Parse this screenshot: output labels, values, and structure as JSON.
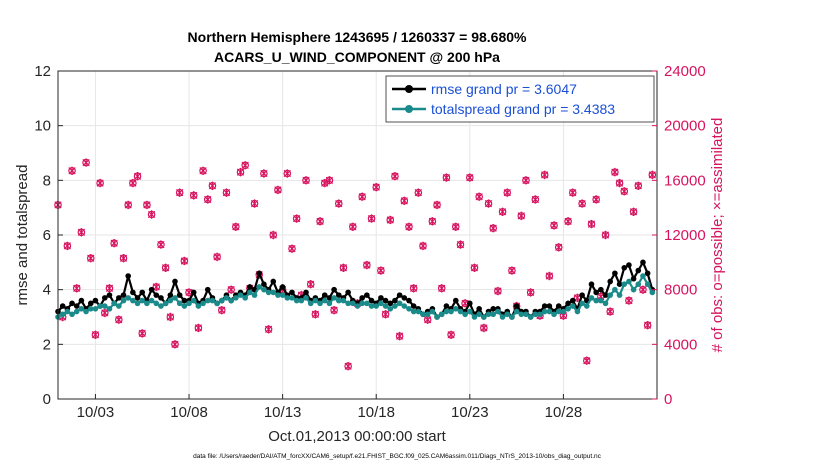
{
  "chart_data": {
    "type": "line",
    "title": "Northern Hemisphere 1243695 / 1260337 = 98.680%",
    "subtitle": "ACARS_U_WIND_COMPONENT @ 200 hPa",
    "xlabel": "Oct.01,2013 00:00:00 start",
    "ylabel": "rmse and totalspread",
    "y2label": "# of obs: o=possible; ×=assimilated",
    "footer": "data file: /Users/raeder/DAI/ATM_forcXX/CAM6_setup/f.e21.FHIST_BGC.f09_025.CAM6assim.011/Diags_NTrS_2013-10/obs_diag_output.nc",
    "xlim": [
      1,
      33
    ],
    "ylim": [
      0,
      12
    ],
    "y2lim": [
      0,
      24000
    ],
    "yticks": [
      0,
      2,
      4,
      6,
      8,
      10,
      12
    ],
    "y2ticks": [
      0,
      4000,
      8000,
      12000,
      16000,
      20000,
      24000
    ],
    "xticks": [
      3,
      8,
      13,
      18,
      23,
      28
    ],
    "xticklabels": [
      "10/03",
      "10/08",
      "10/13",
      "10/18",
      "10/23",
      "10/28"
    ],
    "grid": true,
    "legend_position": "top-right",
    "x": [
      1.0,
      1.25,
      1.5,
      1.75,
      2.0,
      2.25,
      2.5,
      2.75,
      3.0,
      3.25,
      3.5,
      3.75,
      4.0,
      4.25,
      4.5,
      4.75,
      5.0,
      5.25,
      5.5,
      5.75,
      6.0,
      6.25,
      6.5,
      6.75,
      7.0,
      7.25,
      7.5,
      7.75,
      8.0,
      8.25,
      8.5,
      8.75,
      9.0,
      9.25,
      9.5,
      9.75,
      10.0,
      10.25,
      10.5,
      10.75,
      11.0,
      11.25,
      11.5,
      11.75,
      12.0,
      12.25,
      12.5,
      12.75,
      13.0,
      13.25,
      13.5,
      13.75,
      14.0,
      14.25,
      14.5,
      14.75,
      15.0,
      15.25,
      15.5,
      15.75,
      16.0,
      16.25,
      16.5,
      16.75,
      17.0,
      17.25,
      17.5,
      17.75,
      18.0,
      18.25,
      18.5,
      18.75,
      19.0,
      19.25,
      19.5,
      19.75,
      20.0,
      20.25,
      20.5,
      20.75,
      21.0,
      21.25,
      21.5,
      21.75,
      22.0,
      22.25,
      22.5,
      22.75,
      23.0,
      23.25,
      23.5,
      23.75,
      24.0,
      24.25,
      24.5,
      24.75,
      25.0,
      25.25,
      25.5,
      25.75,
      26.0,
      26.25,
      26.5,
      26.75,
      27.0,
      27.25,
      27.5,
      27.75,
      28.0,
      28.25,
      28.5,
      28.75,
      29.0,
      29.25,
      29.5,
      29.75,
      30.0,
      30.25,
      30.5,
      30.75,
      31.0,
      31.25,
      31.5,
      31.75,
      32.0,
      32.25,
      32.5,
      32.75
    ],
    "series": [
      {
        "name": "rmse grand pr = 3.6047",
        "color": "#000000",
        "values": [
          3.2,
          3.4,
          3.3,
          3.5,
          3.4,
          3.6,
          3.3,
          3.5,
          3.6,
          3.4,
          3.7,
          3.8,
          3.5,
          3.7,
          3.8,
          4.5,
          3.9,
          3.7,
          3.9,
          3.6,
          4.0,
          3.8,
          3.7,
          3.5,
          3.8,
          4.3,
          3.8,
          3.6,
          3.6,
          3.9,
          3.5,
          3.6,
          4.0,
          3.7,
          3.5,
          3.6,
          3.8,
          3.6,
          3.8,
          3.9,
          3.8,
          4.1,
          4.0,
          4.6,
          4.2,
          4.0,
          4.3,
          3.9,
          4.1,
          3.8,
          3.9,
          3.7,
          3.7,
          3.9,
          3.6,
          3.7,
          3.6,
          3.8,
          3.7,
          4.0,
          3.8,
          3.7,
          3.9,
          3.6,
          3.5,
          3.7,
          3.8,
          3.6,
          3.5,
          3.7,
          3.6,
          3.5,
          3.6,
          3.8,
          3.7,
          3.6,
          3.4,
          3.3,
          3.1,
          3.2,
          3.3,
          3.0,
          3.1,
          3.4,
          3.3,
          3.6,
          3.3,
          3.2,
          3.5,
          3.1,
          3.3,
          3.0,
          3.2,
          3.3,
          3.3,
          3.1,
          3.2,
          3.0,
          3.4,
          3.2,
          3.2,
          3.0,
          3.2,
          3.2,
          3.4,
          3.4,
          3.2,
          3.4,
          3.3,
          3.5,
          3.6,
          3.3,
          3.8,
          3.6,
          4.2,
          3.9,
          4.0,
          3.8,
          4.3,
          4.6,
          4.2,
          4.8,
          4.9,
          4.4,
          4.7,
          5.0,
          4.6,
          4.0
        ],
        "marker": "circle"
      },
      {
        "name": "totalspread grand pr = 3.4383",
        "color": "#1b8a8a",
        "values": [
          3.0,
          3.1,
          3.2,
          3.1,
          3.2,
          3.3,
          3.2,
          3.3,
          3.3,
          3.4,
          3.4,
          3.3,
          3.5,
          3.4,
          3.6,
          3.7,
          3.6,
          3.5,
          3.6,
          3.5,
          3.6,
          3.5,
          3.4,
          3.5,
          3.6,
          3.7,
          3.5,
          3.4,
          3.5,
          3.6,
          3.4,
          3.5,
          3.6,
          3.6,
          3.5,
          3.6,
          3.7,
          3.6,
          3.7,
          3.8,
          3.7,
          3.9,
          3.8,
          4.1,
          4.0,
          3.9,
          3.9,
          3.8,
          3.8,
          3.7,
          3.7,
          3.6,
          3.6,
          3.7,
          3.5,
          3.6,
          3.5,
          3.6,
          3.5,
          3.7,
          3.6,
          3.6,
          3.5,
          3.5,
          3.4,
          3.5,
          3.5,
          3.4,
          3.4,
          3.5,
          3.4,
          3.3,
          3.4,
          3.5,
          3.4,
          3.3,
          3.2,
          3.2,
          3.1,
          3.1,
          3.2,
          3.0,
          3.1,
          3.2,
          3.2,
          3.3,
          3.2,
          3.1,
          3.2,
          3.0,
          3.1,
          3.0,
          3.1,
          3.1,
          3.2,
          3.0,
          3.1,
          3.0,
          3.2,
          3.1,
          3.1,
          3.0,
          3.1,
          3.1,
          3.2,
          3.2,
          3.1,
          3.2,
          3.2,
          3.3,
          3.4,
          3.2,
          3.5,
          3.4,
          3.7,
          3.6,
          3.6,
          3.5,
          3.8,
          4.0,
          3.8,
          4.2,
          4.3,
          4.0,
          4.2,
          4.5,
          4.2,
          3.9
        ],
        "marker": "circle"
      },
      {
        "name": "observation counts",
        "axis": "right",
        "color": "#d6145f",
        "marker": "o (possible) / × (assimilated)",
        "values": [
          14200,
          6000,
          11200,
          16700,
          8100,
          12200,
          17300,
          10300,
          4700,
          15800,
          6300,
          8100,
          11400,
          5800,
          10300,
          14200,
          15800,
          16300,
          4800,
          14200,
          13500,
          8200,
          11300,
          9600,
          6000,
          4000,
          15100,
          10100,
          7800,
          14900,
          5200,
          16700,
          14600,
          15600,
          10400,
          6500,
          15100,
          8000,
          12600,
          16600,
          17100,
          8100,
          14300,
          9100,
          16500,
          5100,
          12000,
          15300,
          8000,
          16500,
          11000,
          13200,
          7600,
          16000,
          8400,
          6200,
          13000,
          15800,
          16000,
          6500,
          14300,
          9600,
          2400,
          12600,
          7000,
          14800,
          9800,
          13200,
          15500,
          9400,
          6200,
          13100,
          16300,
          4600,
          14500,
          12600,
          8100,
          15100,
          11200,
          5800,
          13000,
          14200,
          8100,
          16200,
          4700,
          12600,
          11300,
          7000,
          16200,
          9600,
          14800,
          5200,
          14300,
          12500,
          7900,
          13700,
          15100,
          9400,
          6800,
          13400,
          16000,
          7800,
          14600,
          6100,
          16400,
          9000,
          12700,
          11100,
          6100,
          13000,
          15100,
          7400,
          14300,
          2800,
          12800,
          14600,
          7500,
          12000,
          6400,
          16600,
          15800,
          15200,
          7200,
          13700,
          15600,
          8000,
          5400,
          16400
        ]
      }
    ],
    "legend": [
      {
        "label": "rmse grand pr = 3.6047",
        "color": "#000000"
      },
      {
        "label": "totalspread grand pr = 3.4383",
        "color": "#1b8a8a"
      }
    ]
  }
}
